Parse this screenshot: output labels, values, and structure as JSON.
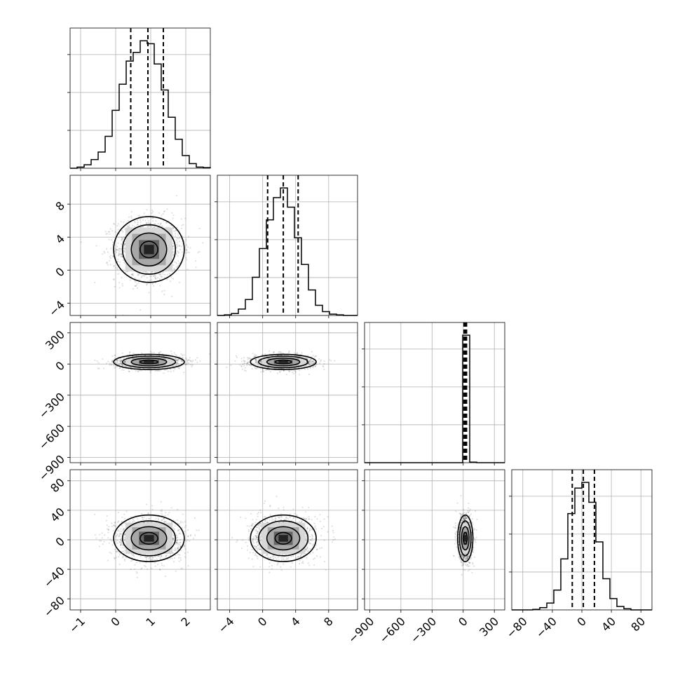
{
  "chart_data": {
    "type": "corner",
    "parameters": [
      {
        "range": [
          -1.3,
          2.7
        ],
        "ticks": [
          -1,
          0,
          1,
          2
        ],
        "tick_labels": [
          "−1",
          "0",
          "1",
          "2"
        ],
        "mean": 0.95,
        "sd": 0.48,
        "quantiles": [
          0.43,
          0.92,
          1.36
        ],
        "hist": {
          "edges": [
            -1.3,
            -1.1,
            -0.9,
            -0.7,
            -0.5,
            -0.3,
            -0.1,
            0.1,
            0.3,
            0.5,
            0.7,
            0.9,
            1.1,
            1.3,
            1.5,
            1.7,
            1.9,
            2.1,
            2.3,
            2.5,
            2.7
          ],
          "counts": [
            0,
            2,
            6,
            15,
            28,
            55,
            100,
            145,
            185,
            200,
            220,
            215,
            180,
            135,
            88,
            50,
            22,
            8,
            2,
            1
          ]
        }
      },
      {
        "range": [
          -5.5,
          11.5
        ],
        "ticks": [
          -4,
          0,
          4,
          8
        ],
        "tick_labels": [
          "−4",
          "0",
          "4",
          "8"
        ],
        "mean": 2.5,
        "sd": 1.9,
        "quantiles": [
          0.6,
          2.5,
          4.3
        ],
        "hist": {
          "edges": [
            -5.5,
            -4.65,
            -3.8,
            -2.95,
            -2.1,
            -1.25,
            -0.4,
            0.45,
            1.3,
            2.15,
            3.0,
            3.85,
            4.7,
            5.55,
            6.4,
            7.25,
            8.1,
            8.95,
            9.8,
            10.65,
            11.5
          ],
          "counts": [
            0,
            1,
            3,
            10,
            25,
            60,
            105,
            150,
            185,
            200,
            170,
            122,
            80,
            40,
            16,
            6,
            2,
            1,
            0,
            0
          ]
        }
      },
      {
        "range": [
          -950,
          400
        ],
        "ticks": [
          -900,
          -600,
          -300,
          0,
          300
        ],
        "tick_labels": [
          "−900",
          "−600",
          "−300",
          "0",
          "300"
        ],
        "y_ticks": [
          0,
          300,
          600,
          900
        ],
        "y_tick_labels": [
          "0",
          "−300",
          "−600",
          "−900"
        ],
        "mean": 20,
        "sd": 35,
        "quantiles": [
          8,
          20,
          32
        ],
        "hist": {
          "edges": [
            -950,
            -882.5,
            -815,
            -747.5,
            -680,
            -612.5,
            -545,
            -477.5,
            -410,
            -342.5,
            -275,
            -207.5,
            -140,
            -72.5,
            -5,
            62.5,
            130,
            197.5,
            265,
            332.5,
            400
          ],
          "counts": [
            0,
            0,
            0,
            0,
            0,
            0,
            0,
            0,
            0,
            0,
            0,
            0,
            0,
            0,
            1000,
            4,
            0,
            0,
            0,
            0
          ]
        }
      },
      {
        "range": [
          -95,
          95
        ],
        "ticks": [
          -80,
          -40,
          0,
          40,
          80
        ],
        "tick_labels": [
          "−80",
          "−40",
          "0",
          "40",
          "80"
        ],
        "y_tick_labels": [
          "−80",
          "−40",
          "0",
          "40",
          "80"
        ],
        "mean": 2,
        "sd": 15,
        "quantiles": [
          -13,
          2,
          17
        ],
        "hist": {
          "edges": [
            -95,
            -85.5,
            -76,
            -66.5,
            -57,
            -47.5,
            -38,
            -28.5,
            -19,
            -9.5,
            0,
            9.5,
            19,
            28.5,
            38,
            47.5,
            57,
            66.5,
            76,
            85.5,
            95
          ],
          "counts": [
            0,
            0,
            0,
            1,
            4,
            12,
            35,
            90,
            170,
            215,
            225,
            190,
            120,
            55,
            20,
            6,
            2,
            0,
            0,
            0
          ]
        }
      }
    ],
    "grid": true,
    "contour_levels_sigma": [
      0.5,
      1.0,
      1.5,
      2.0
    ]
  }
}
